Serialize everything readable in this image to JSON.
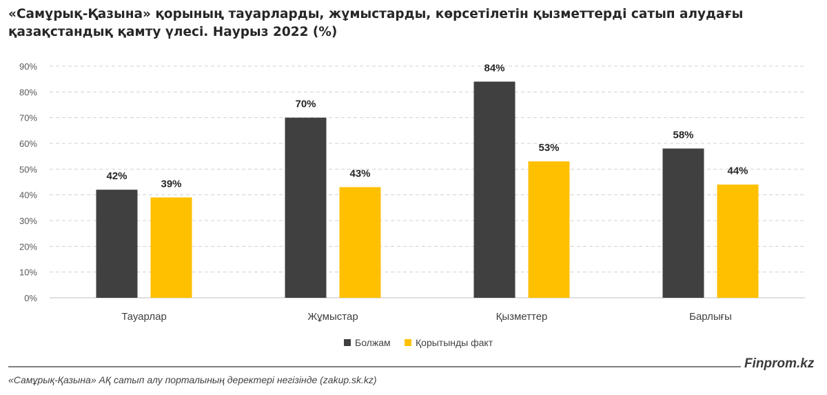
{
  "header": {
    "title_line1": "«Самұрық-Қазына» қорының тауарларды, жұмыстарды, көрсетілетін қызметтерді сатып алудағы",
    "title_line2": "қазақстандық қамту үлесі. Наурыз 2022 (%)"
  },
  "chart_data": {
    "type": "bar",
    "categories": [
      "Тауарлар",
      "Жұмыстар",
      "Қызметтер",
      "Барлығы"
    ],
    "series": [
      {
        "name": "Болжам",
        "values": [
          42,
          70,
          84,
          58
        ],
        "color": "#404040"
      },
      {
        "name": "Қорытынды факт",
        "values": [
          39,
          43,
          53,
          44
        ],
        "color": "#ffc000"
      }
    ],
    "ylim": [
      0,
      90
    ],
    "yticks": [
      "0%",
      "10%",
      "20%",
      "30%",
      "40%",
      "50%",
      "60%",
      "70%",
      "80%",
      "90%"
    ],
    "value_suffix": "%",
    "grid": true,
    "legend_position": "bottom"
  },
  "footer": {
    "brand": "Finprom.kz",
    "source": "«Самұрық-Қазына» АҚ сатып алу порталының деректері негізінде (zakup.sk.kz)"
  }
}
